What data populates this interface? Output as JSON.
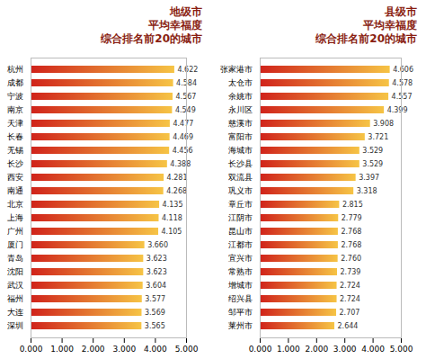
{
  "chart_data": [
    {
      "type": "bar",
      "orientation": "horizontal",
      "title": "地级市\n平均幸福度\n综合排名前20的城市",
      "categories": [
        "杭州",
        "成都",
        "宁波",
        "南京",
        "天津",
        "长春",
        "无锡",
        "长沙",
        "西安",
        "南通",
        "北京",
        "上海",
        "广州",
        "厦门",
        "青岛",
        "沈阳",
        "武汉",
        "福州",
        "大连",
        "深圳"
      ],
      "values": [
        4.622,
        4.584,
        4.567,
        4.549,
        4.477,
        4.469,
        4.456,
        4.388,
        4.281,
        4.268,
        4.135,
        4.118,
        4.105,
        3.66,
        3.623,
        3.623,
        3.604,
        3.577,
        3.569,
        3.565
      ],
      "value_labels": [
        "4.622",
        "4.584",
        "4.567",
        "4.549",
        "4.477",
        "4.469",
        "4.456",
        "4.388",
        "4.281",
        "4.268",
        "4.135",
        "4.118",
        "4.105",
        "3.660",
        "3.623",
        "3.623",
        "3.604",
        "3.577",
        "3.569",
        "3.565"
      ],
      "color": "#d0221a",
      "data_labels": true,
      "xlim": [
        0,
        5
      ],
      "xticks": [
        {
          "value": 0,
          "label": "0.000"
        },
        {
          "value": 1,
          "label": "1.000"
        },
        {
          "value": 2,
          "label": "2.000"
        },
        {
          "value": 3,
          "label": "3.000"
        },
        {
          "value": 4,
          "label": "4.000"
        },
        {
          "value": 5,
          "label": "5.000"
        }
      ]
    },
    {
      "type": "bar",
      "orientation": "horizontal",
      "title": "县级市\n平均幸福度\n综合排名前20的城市",
      "categories": [
        "张家港市",
        "太仓市",
        "余姚市",
        "永川区",
        "慈溪市",
        "富阳市",
        "海城市",
        "长沙县",
        "双流县",
        "巩义市",
        "章丘市",
        "江阴市",
        "昆山市",
        "江都市",
        "宜兴市",
        "常熟市",
        "增城市",
        "绍兴县",
        "邹平市",
        "莱州市"
      ],
      "values": [
        4.606,
        4.578,
        4.557,
        4.399,
        3.908,
        3.721,
        3.529,
        3.529,
        3.397,
        3.318,
        2.815,
        2.779,
        2.768,
        2.768,
        2.76,
        2.739,
        2.724,
        2.724,
        2.707,
        2.644
      ],
      "value_labels": [
        "4.606",
        "4.578",
        "4.557",
        "4.399",
        "3.908",
        "3.721",
        "3.529",
        "3.529",
        "3.397",
        "3.318",
        "2.815",
        "2.779",
        "2.768",
        "2.768",
        "2.760",
        "2.739",
        "2.724",
        "2.724",
        "2.707",
        "2.644"
      ],
      "color": "#d0221a",
      "data_labels": true,
      "xlim": [
        0,
        5
      ],
      "xticks": [
        {
          "value": 0,
          "label": "0.000"
        },
        {
          "value": 1,
          "label": "1.000"
        },
        {
          "value": 2,
          "label": "2.000"
        },
        {
          "value": 3,
          "label": "3.000"
        },
        {
          "value": 4,
          "label": "4.000"
        },
        {
          "value": 5,
          "label": "5.000"
        }
      ]
    }
  ]
}
